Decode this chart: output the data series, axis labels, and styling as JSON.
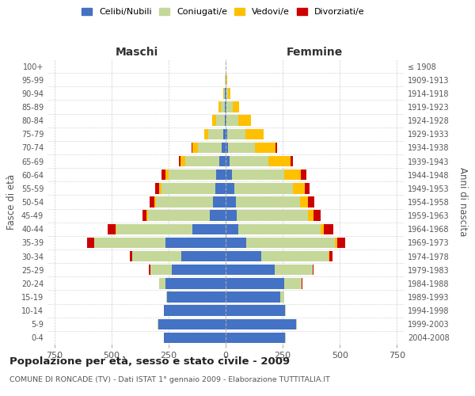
{
  "age_groups": [
    "0-4",
    "5-9",
    "10-14",
    "15-19",
    "20-24",
    "25-29",
    "30-34",
    "35-39",
    "40-44",
    "45-49",
    "50-54",
    "55-59",
    "60-64",
    "65-69",
    "70-74",
    "75-79",
    "80-84",
    "85-89",
    "90-94",
    "95-99",
    "100+"
  ],
  "birth_years": [
    "2004-2008",
    "1999-2003",
    "1994-1998",
    "1989-1993",
    "1984-1988",
    "1979-1983",
    "1974-1978",
    "1969-1973",
    "1964-1968",
    "1959-1963",
    "1954-1958",
    "1949-1953",
    "1944-1948",
    "1939-1943",
    "1934-1938",
    "1929-1933",
    "1924-1928",
    "1919-1923",
    "1914-1918",
    "1909-1913",
    "≤ 1908"
  ],
  "male": {
    "celibi": [
      270,
      295,
      270,
      255,
      265,
      235,
      195,
      265,
      145,
      70,
      55,
      45,
      40,
      28,
      18,
      10,
      5,
      4,
      2,
      1,
      0
    ],
    "coniugati": [
      2,
      2,
      2,
      5,
      25,
      95,
      215,
      310,
      335,
      270,
      250,
      235,
      210,
      150,
      105,
      65,
      38,
      18,
      5,
      2,
      0
    ],
    "vedovi": [
      0,
      0,
      0,
      0,
      0,
      0,
      0,
      0,
      2,
      5,
      8,
      10,
      12,
      18,
      22,
      18,
      15,
      8,
      3,
      1,
      0
    ],
    "divorziati": [
      0,
      0,
      0,
      0,
      2,
      5,
      10,
      30,
      35,
      20,
      20,
      20,
      20,
      10,
      4,
      0,
      0,
      0,
      0,
      0,
      0
    ]
  },
  "female": {
    "nubili": [
      260,
      310,
      260,
      240,
      255,
      215,
      155,
      90,
      55,
      50,
      45,
      38,
      28,
      18,
      10,
      8,
      5,
      5,
      2,
      1,
      0
    ],
    "coniugate": [
      2,
      2,
      4,
      18,
      78,
      165,
      295,
      390,
      360,
      310,
      280,
      255,
      228,
      170,
      118,
      80,
      50,
      25,
      8,
      3,
      0
    ],
    "vedove": [
      0,
      0,
      0,
      0,
      0,
      0,
      5,
      8,
      15,
      25,
      35,
      55,
      75,
      95,
      92,
      78,
      55,
      30,
      10,
      3,
      1
    ],
    "divorziate": [
      0,
      0,
      0,
      0,
      2,
      5,
      12,
      35,
      42,
      30,
      28,
      20,
      24,
      10,
      5,
      2,
      2,
      0,
      0,
      0,
      0
    ]
  },
  "colors": {
    "celibi_nubili": "#4472c4",
    "coniugati_e": "#c5d89a",
    "vedovi_e": "#ffc000",
    "divorziati_e": "#cc0000"
  },
  "xlim": 780,
  "title": "Popolazione per età, sesso e stato civile - 2009",
  "subtitle": "COMUNE DI RONCADE (TV) - Dati ISTAT 1° gennaio 2009 - Elaborazione TUTTITALIA.IT",
  "xlabel_left": "Maschi",
  "xlabel_right": "Femmine",
  "ylabel_left": "Fasce di età",
  "ylabel_right": "Anni di nascita",
  "legend_labels": [
    "Celibi/Nubili",
    "Coniugati/e",
    "Vedovi/e",
    "Divorziati/e"
  ],
  "background_color": "#ffffff",
  "grid_color": "#cccccc"
}
